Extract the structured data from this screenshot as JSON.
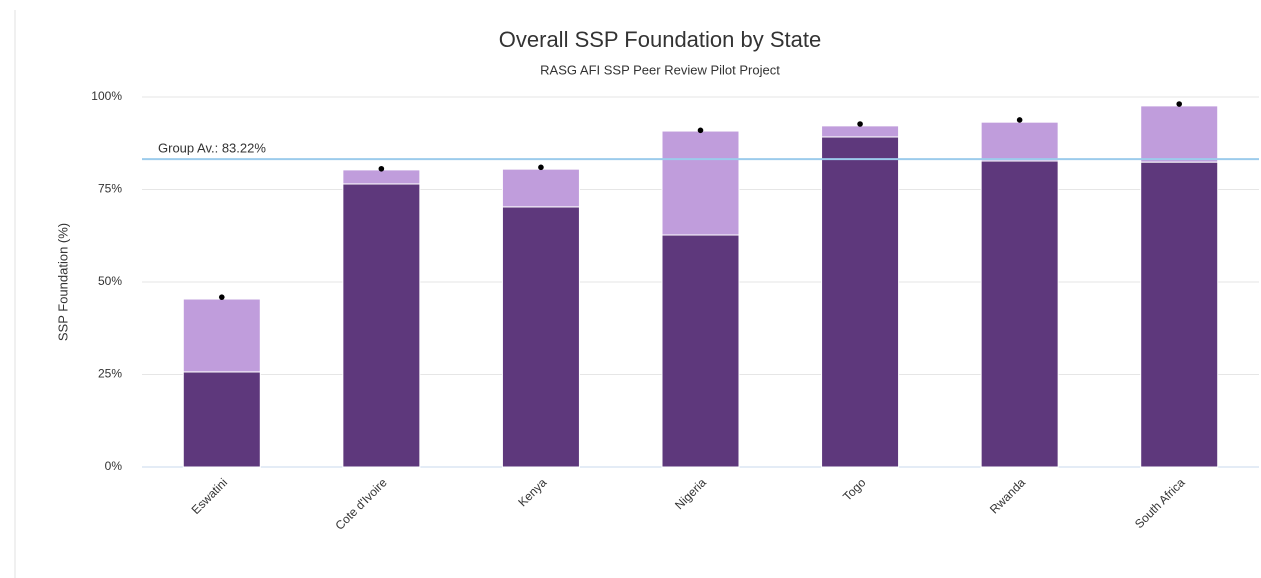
{
  "chart_data": {
    "type": "stacked_bar",
    "title": "Overall SSP Foundation by State",
    "subtitle": "RASG AFI SSP Peer Review Pilot Project",
    "y_label": "SSP Foundation (%)",
    "categories": [
      "Eswatini",
      "Cote d'Ivoire",
      "Kenya",
      "Nigeria",
      "Togo",
      "Rwanda",
      "South Africa"
    ],
    "series": [
      {
        "color": "#5e387c",
        "values": [
          25.7,
          76.5,
          70.3,
          62.7,
          89.2,
          82.7,
          82.4
        ]
      },
      {
        "color": "#c09ddc",
        "values": [
          19.7,
          3.8,
          10.2,
          28.1,
          3.0,
          10.5,
          15.2
        ]
      }
    ],
    "markers": {
      "color": "#000000",
      "values": [
        45.9,
        80.6,
        81.0,
        91.0,
        92.7,
        93.8,
        98.1
      ]
    },
    "reference_line": {
      "value": 83.22,
      "label": "Group Av.: 83.22%",
      "color": "#9ccbec"
    },
    "ylim": [
      0,
      100
    ],
    "yticks": [
      {
        "value": 0,
        "label": "0%"
      },
      {
        "value": 25,
        "label": "25%"
      },
      {
        "value": 50,
        "label": "50%"
      },
      {
        "value": 75,
        "label": "75%"
      },
      {
        "value": 100,
        "label": "100%"
      }
    ],
    "grid": true
  }
}
